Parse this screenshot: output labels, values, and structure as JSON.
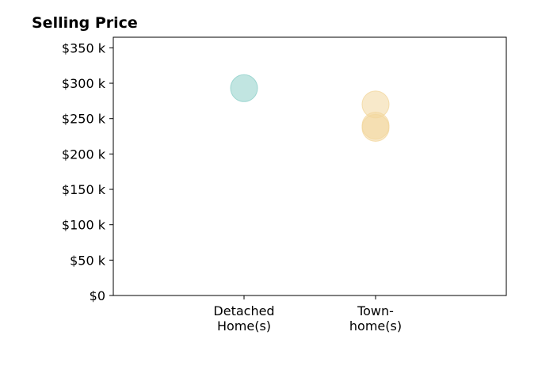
{
  "chart_data": {
    "type": "scatter",
    "title": "Selling Price",
    "xlabel": "",
    "ylabel": "",
    "categories": [
      [
        "Detached",
        "Home(s)"
      ],
      [
        "Town-",
        "home(s)"
      ]
    ],
    "ylim": [
      0,
      365000
    ],
    "y_ticks": [
      0,
      50000,
      100000,
      150000,
      200000,
      250000,
      300000,
      350000
    ],
    "y_tick_labels": [
      "$0",
      "$50 k",
      "$100 k",
      "$150 k",
      "$200 k",
      "$250 k",
      "$300 k",
      "$350 k"
    ],
    "grid": false,
    "legend": "none",
    "series": [
      {
        "color": "#8ecfc9",
        "points": [
          {
            "category": 0,
            "y": 293000
          }
        ]
      },
      {
        "color": "#f2d79e",
        "points": [
          {
            "category": 1,
            "y": 270000
          },
          {
            "category": 1,
            "y": 240000
          },
          {
            "category": 1,
            "y": 237000
          }
        ]
      }
    ]
  }
}
